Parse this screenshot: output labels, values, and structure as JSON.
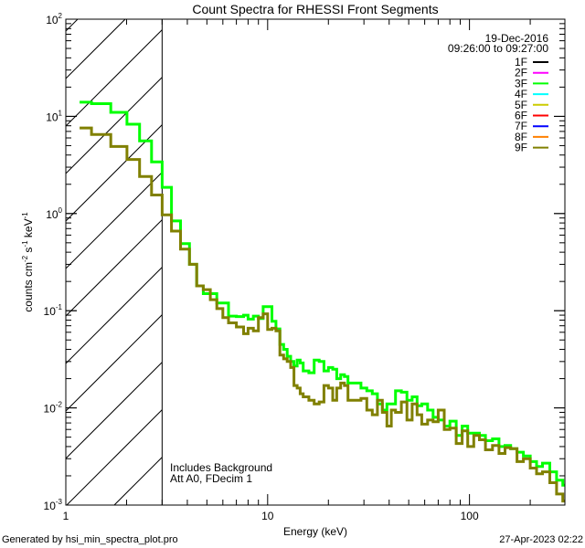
{
  "chart_data": {
    "type": "line",
    "title": "Count Spectra for RHESSI Front Segments",
    "xlabel": "Energy (keV)",
    "ylabel_parts": {
      "a": "counts cm",
      "b": "-2",
      "c": " s",
      "d": "-1",
      "e": " keV",
      "f": "-1"
    },
    "xscale": "log",
    "yscale": "log",
    "xlim": [
      1,
      297
    ],
    "ylim": [
      0.001,
      100
    ],
    "x_ticks": [
      {
        "value": 1,
        "label": "1"
      },
      {
        "value": 10,
        "label": "10"
      },
      {
        "value": 100,
        "label": "100"
      }
    ],
    "y_ticks": [
      {
        "value": 0.001,
        "base": "10",
        "exp": "-3"
      },
      {
        "value": 0.01,
        "base": "10",
        "exp": "-2"
      },
      {
        "value": 0.1,
        "base": "10",
        "exp": "-1"
      },
      {
        "value": 1,
        "base": "10",
        "exp": "0"
      },
      {
        "value": 10,
        "base": "10",
        "exp": "1"
      },
      {
        "value": 100,
        "base": "10",
        "exp": "2"
      }
    ],
    "excluded_region_keV": [
      1,
      3
    ],
    "date": "19-Dec-2016",
    "time_range": "09:26:00 to 09:27:00",
    "annotations": [
      "Includes Background",
      "Att A0, FDecim 1"
    ],
    "legend_position": "top-right",
    "legend": [
      {
        "label": "1F",
        "color": "#000000"
      },
      {
        "label": "2F",
        "color": "#ff00ff"
      },
      {
        "label": "3F",
        "color": "#00ff00"
      },
      {
        "label": "4F",
        "color": "#00ffff"
      },
      {
        "label": "5F",
        "color": "#cccc00"
      },
      {
        "label": "6F",
        "color": "#ff0000"
      },
      {
        "label": "7F",
        "color": "#0000ff"
      },
      {
        "label": "8F",
        "color": "#ff8000"
      },
      {
        "label": "9F",
        "color": "#808000"
      }
    ],
    "energy_edges": [
      1.17,
      1.34,
      1.67,
      2.01,
      2.32,
      2.66,
      3.0,
      3.34,
      3.7,
      4.1,
      4.45,
      4.8,
      5.2,
      5.6,
      6.0,
      6.4,
      7.0,
      7.6,
      8.0,
      8.5,
      9.0,
      9.5,
      10.0,
      10.5,
      11.0,
      11.5,
      12.0,
      12.5,
      13.0,
      13.5,
      14.0,
      14.5,
      15,
      16,
      17,
      18,
      19,
      20,
      21,
      22,
      23,
      24,
      25,
      27,
      29,
      31,
      33,
      35,
      37,
      39,
      41,
      43,
      46,
      49,
      52,
      55,
      58,
      62,
      66,
      70,
      75,
      80,
      86,
      92,
      98,
      105,
      112,
      120,
      130,
      140,
      150,
      160,
      172,
      185,
      200,
      215,
      230,
      250,
      270,
      290,
      297
    ],
    "series": [
      {
        "name": "3F",
        "color": "#00ff00",
        "values": [
          14,
          13.5,
          11,
          8.3,
          5.6,
          3.4,
          1.86,
          0.84,
          0.49,
          0.3,
          0.18,
          0.15,
          0.15,
          0.12,
          0.12,
          0.088,
          0.087,
          0.09,
          0.082,
          0.088,
          0.083,
          0.11,
          0.11,
          0.078,
          0.065,
          0.045,
          0.04,
          0.034,
          0.03,
          0.027,
          0.031,
          0.029,
          0.024,
          0.023,
          0.031,
          0.03,
          0.024,
          0.026,
          0.025,
          0.02,
          0.022,
          0.021,
          0.018,
          0.018,
          0.016,
          0.015,
          0.014,
          0.011,
          0.0095,
          0.011,
          0.011,
          0.015,
          0.0145,
          0.012,
          0.013,
          0.0105,
          0.011,
          0.0095,
          0.008,
          0.0075,
          0.0065,
          0.0073,
          0.0052,
          0.0065,
          0.0055,
          0.0055,
          0.0052,
          0.0046,
          0.0048,
          0.004,
          0.0041,
          0.0038,
          0.0035,
          0.0032,
          0.0028,
          0.0025,
          0.0027,
          0.0022,
          0.0018,
          0.0016
        ]
      },
      {
        "name": "9F",
        "color": "#808000",
        "values": [
          7.6,
          6.5,
          4.9,
          3.6,
          2.4,
          1.55,
          0.97,
          0.66,
          0.43,
          0.3,
          0.18,
          0.165,
          0.13,
          0.105,
          0.085,
          0.075,
          0.068,
          0.058,
          0.066,
          0.062,
          0.085,
          0.093,
          0.064,
          0.066,
          0.062,
          0.035,
          0.032,
          0.03,
          0.026,
          0.017,
          0.016,
          0.014,
          0.013,
          0.012,
          0.011,
          0.0115,
          0.017,
          0.016,
          0.012,
          0.016,
          0.018,
          0.017,
          0.012,
          0.012,
          0.0125,
          0.0095,
          0.0085,
          0.012,
          0.009,
          0.0065,
          0.0095,
          0.009,
          0.0115,
          0.0075,
          0.011,
          0.0085,
          0.0068,
          0.0075,
          0.0072,
          0.0095,
          0.006,
          0.0062,
          0.0043,
          0.0058,
          0.004,
          0.0052,
          0.0047,
          0.0037,
          0.0041,
          0.0034,
          0.0039,
          0.0038,
          0.0028,
          0.003,
          0.0024,
          0.0021,
          0.0022,
          0.0017,
          0.0013,
          0.0011
        ]
      }
    ]
  },
  "footer": {
    "generated_by": "Generated by hsi_min_spectra_plot.pro",
    "timestamp": "27-Apr-2023 02:22"
  }
}
